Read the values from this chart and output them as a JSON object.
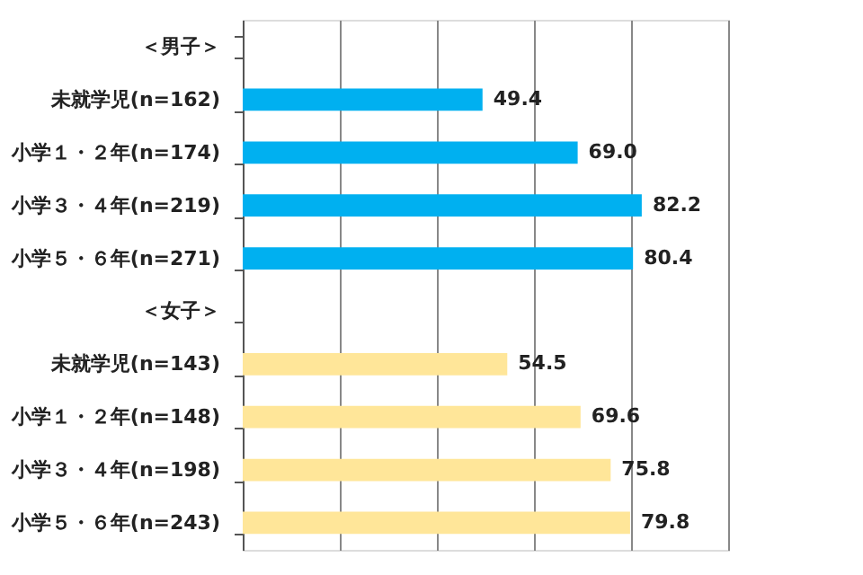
{
  "chart_data": {
    "type": "bar",
    "orientation": "horizontal",
    "categories": [
      "＜男子＞",
      "未就学児(n=162)",
      "小学１・２年(n=174)",
      "小学３・４年(n=219)",
      "小学５・６年(n=271)",
      "＜女子＞",
      "未就学児(n=143)",
      "小学１・２年(n=148)",
      "小学３・４年(n=198)",
      "小学５・６年(n=243)"
    ],
    "series": [
      {
        "color": "#00b0f0",
        "values": [
          null,
          49.4,
          69.0,
          82.2,
          80.4,
          null,
          null,
          null,
          null,
          null
        ],
        "value_labels": [
          null,
          "49.4",
          "69.0",
          "82.2",
          "80.4",
          null,
          null,
          null,
          null,
          null
        ]
      },
      {
        "color": "#ffe699",
        "values": [
          null,
          null,
          null,
          null,
          null,
          null,
          54.5,
          69.6,
          75.8,
          79.8
        ],
        "value_labels": [
          null,
          null,
          null,
          null,
          null,
          null,
          "54.5",
          "69.6",
          "75.8",
          "79.8"
        ]
      }
    ],
    "xlim": [
      0,
      100
    ],
    "xticks": [
      {
        "value": 0,
        "label": null
      },
      {
        "value": 20,
        "label": null
      },
      {
        "value": 40,
        "label": null
      },
      {
        "value": 60,
        "label": null
      },
      {
        "value": 80,
        "label": null
      },
      {
        "value": 100,
        "label": null
      }
    ],
    "grid": "x"
  }
}
